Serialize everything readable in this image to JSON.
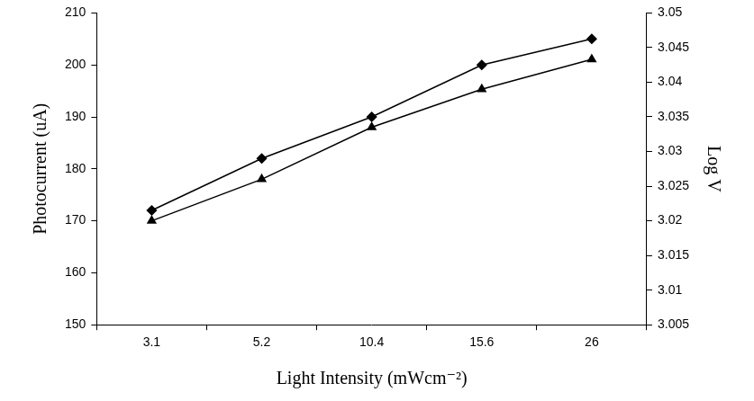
{
  "chart_data": {
    "type": "line",
    "x_label": "Light Intensity (mWcm⁻²)",
    "y_label": "Photocurrent (uA)",
    "y2_label": "Log V",
    "categories": [
      "3.1",
      "5.2",
      "10.4",
      "15.6",
      "26"
    ],
    "series": [
      {
        "color": "#000000",
        "marker": "diamond",
        "line_style": "solid",
        "values": [
          172,
          182,
          190,
          200,
          205
        ]
      },
      {
        "color": "#000000",
        "marker": "triangle",
        "line_style": "solid",
        "axis": "y2",
        "values": [
          3.02,
          3.026,
          3.0335,
          3.039,
          3.0433
        ]
      }
    ],
    "ylim": [
      150,
      210
    ],
    "yticks": [
      150,
      160,
      170,
      180,
      190,
      200,
      210
    ],
    "y2lim": [
      3.005,
      3.05
    ],
    "y2ticks": [
      3.005,
      3.01,
      3.015,
      3.02,
      3.025,
      3.03,
      3.035,
      3.04,
      3.045,
      3.05
    ],
    "grid": false
  }
}
